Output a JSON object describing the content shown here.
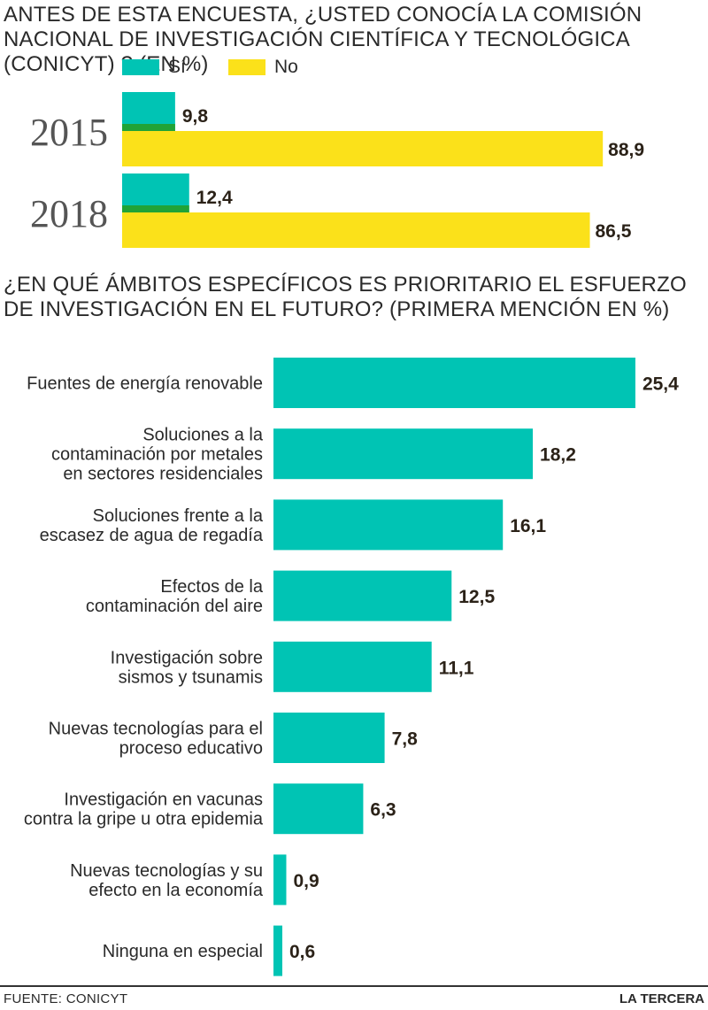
{
  "chart_data": [
    {
      "type": "bar",
      "orientation": "horizontal",
      "title": "ANTES DE ESTA ENCUESTA, ¿USTED CONOCÍA LA COMISIÓN NACIONAL DE INVESTIGACIÓN CIENTÍFICA Y TECNOLÓGICA (CONICYT) ? (EN %)",
      "categories": [
        "2015",
        "2018"
      ],
      "series": [
        {
          "name": "Sí",
          "values": [
            9.8,
            12.4
          ],
          "color": "#00c4b4"
        },
        {
          "name": "No",
          "values": [
            88.9,
            86.5
          ],
          "color": "#fbe11a"
        }
      ],
      "value_labels": {
        "Sí": [
          "9,8",
          "12,4"
        ],
        "No": [
          "88,9",
          "86,5"
        ]
      },
      "legend_position": "top-left",
      "grid": false
    },
    {
      "type": "bar",
      "orientation": "horizontal",
      "title": "¿EN QUÉ ÁMBITOS ESPECÍFICOS ES PRIORITARIO EL ESFUERZO DE INVESTIGACIÓN EN EL FUTURO? (PRIMERA MENCIÓN EN %)",
      "categories": [
        [
          "Fuentes de energía renovable"
        ],
        [
          "Soluciones a la",
          "contaminación por metales",
          "en sectores residenciales"
        ],
        [
          "Soluciones frente a la",
          "escasez de agua de regadía"
        ],
        [
          "Efectos de la",
          "contaminación del aire"
        ],
        [
          "Investigación sobre",
          "sismos y tsunamis"
        ],
        [
          "Nuevas tecnologías para el",
          "proceso educativo"
        ],
        [
          "Investigación en vacunas",
          "contra la gripe u otra epidemia"
        ],
        [
          "Nuevas tecnologías y su",
          "efecto en la economía"
        ],
        [
          "Ninguna en especial"
        ]
      ],
      "values": [
        25.4,
        18.2,
        16.1,
        12.5,
        11.1,
        7.8,
        6.3,
        0.9,
        0.6
      ],
      "value_labels": [
        "25,4",
        "18,2",
        "16,1",
        "12,5",
        "11,1",
        "7,8",
        "6,3",
        "0,9",
        "0,6"
      ],
      "color": "#00c4b4",
      "grid": false
    }
  ],
  "colors": {
    "si": "#00c4b4",
    "no": "#fbe11a",
    "si_underline": "#21a336",
    "text": "#2a2a2a"
  },
  "footer": {
    "source": "FUENTE: CONICYT",
    "brand": "LA TERCERA"
  }
}
